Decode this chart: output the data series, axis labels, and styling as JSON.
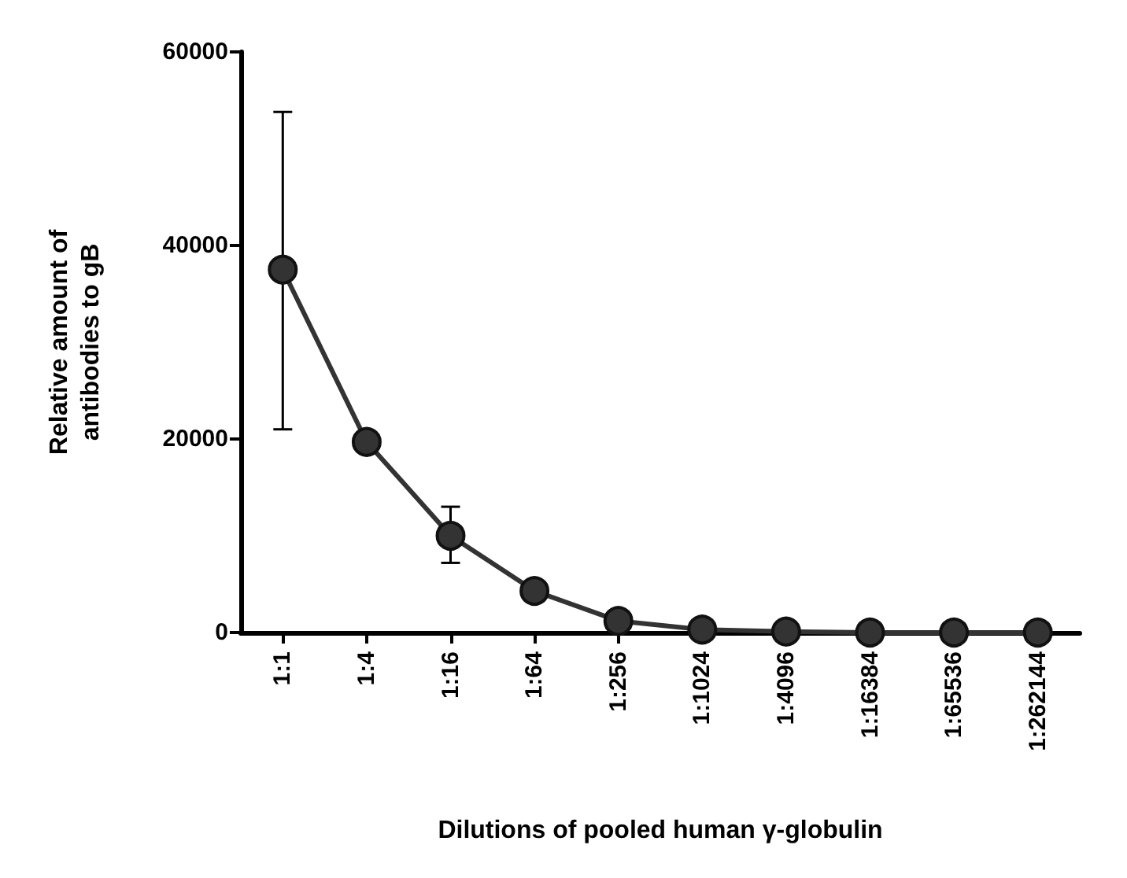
{
  "chart_data": {
    "type": "line",
    "xlabel": "Dilutions of pooled human γ-globulin",
    "ylabel": "Relative amount of\nantibodies to gB",
    "categories": [
      "1:1",
      "1:4",
      "1:16",
      "1:64",
      "1:256",
      "1:1024",
      "1:4096",
      "1:16384",
      "1:65536",
      "1:262144"
    ],
    "series": [
      {
        "color": "#333333",
        "values": [
          37500,
          19700,
          10000,
          4300,
          1200,
          300,
          100,
          0,
          0,
          0
        ],
        "errors": [
          [
            21000,
            53800
          ],
          null,
          [
            7200,
            13000
          ],
          null,
          null,
          null,
          null,
          null,
          null,
          null
        ]
      }
    ],
    "ylim": [
      0,
      60000
    ],
    "yticks": [
      0,
      20000,
      40000,
      60000
    ],
    "grid": false,
    "marker": "circle",
    "line_style": "solid"
  }
}
